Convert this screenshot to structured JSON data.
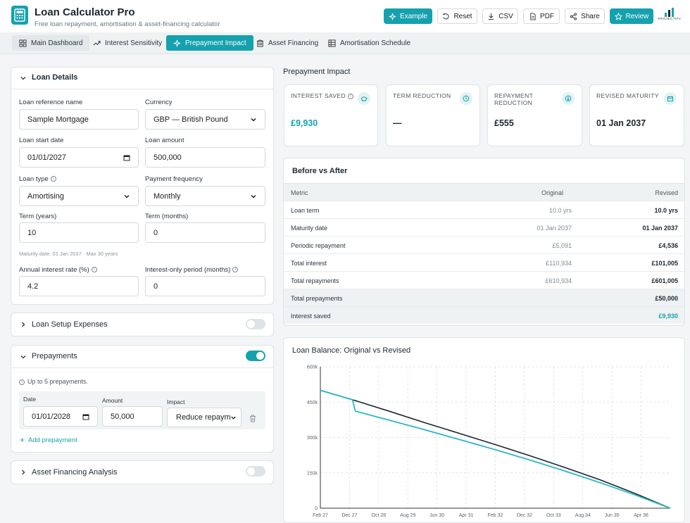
{
  "header": {
    "title": "Loan Calculator Pro",
    "subtitle": "Free loan repayment, amortisation & asset-financing calculator",
    "buttons": {
      "example": "Example",
      "reset": "Reset",
      "csv": "CSV",
      "pdf": "PDF",
      "share": "Share",
      "review": "Review"
    },
    "brand": "PROJECTIFY"
  },
  "tabs": [
    {
      "label": "Main Dashboard"
    },
    {
      "label": "Interest Sensitivity"
    },
    {
      "label": "Prepayment Impact"
    },
    {
      "label": "Asset Financing"
    },
    {
      "label": "Amortisation Schedule"
    }
  ],
  "loan_details": {
    "title": "Loan Details",
    "reference_label": "Loan reference name",
    "reference_value": "Sample Mortgage",
    "currency_label": "Currency",
    "currency_value": "GBP — British Pound",
    "start_label": "Loan start date",
    "start_value": "01/01/2027",
    "amount_label": "Loan amount",
    "amount_value": "500,000",
    "type_label": "Loan type",
    "type_value": "Amortising",
    "frequency_label": "Payment frequency",
    "frequency_value": "Monthly",
    "term_years_label": "Term (years)",
    "term_years_value": "10",
    "term_months_label": "Term (months)",
    "term_months_value": "0",
    "maturity_hint": "Maturity date: 01 Jan 2037 · Max 30 years",
    "rate_label": "Annual interest rate (%)",
    "rate_value": "4.2",
    "io_label": "Interest-only period (months)",
    "io_value": "0"
  },
  "setup_expenses": {
    "title": "Loan Setup Expenses",
    "enabled": false
  },
  "prepayments": {
    "title": "Prepayments",
    "enabled": true,
    "hint": "Up to 5 prepayments.",
    "date_label": "Date",
    "date_value": "01/01/2028",
    "amount_label": "Amount",
    "amount_value": "50,000",
    "impact_label": "Impact",
    "impact_value": "Reduce repayme",
    "add_label": "Add prepayment"
  },
  "asset_financing": {
    "title": "Asset Financing Analysis",
    "enabled": false
  },
  "prepayment_impact": {
    "heading": "Prepayment Impact",
    "stats": [
      {
        "label": "Interest saved",
        "value": "£9,930",
        "icon": "piggy-bank-icon",
        "accent": true
      },
      {
        "label": "Term reduction",
        "value": "—",
        "icon": "clock-icon",
        "accent": false
      },
      {
        "label": "Repayment reduction",
        "value": "£555",
        "icon": "arrow-down-circle-icon",
        "accent": false
      },
      {
        "label": "Revised maturity",
        "value": "01 Jan 2037",
        "icon": "calendar-icon",
        "accent": false
      }
    ]
  },
  "before_after": {
    "title": "Before vs After",
    "columns": [
      "Metric",
      "Original",
      "Revised"
    ],
    "rows": [
      [
        "Loan term",
        "10.0 yrs",
        "10.0 yrs"
      ],
      [
        "Maturity date",
        "01 Jan 2037",
        "01 Jan 2037"
      ],
      [
        "Periodic repayment",
        "£5,091",
        "£4,536"
      ],
      [
        "Total interest",
        "£110,934",
        "£101,005"
      ],
      [
        "Total repayments",
        "£610,934",
        "£601,005"
      ]
    ],
    "summary_rows": [
      [
        "Total prepayments",
        "£50,000"
      ],
      [
        "Interest saved",
        "£9,930"
      ]
    ]
  },
  "chart_data": {
    "type": "line",
    "title": "Loan Balance: Original vs Revised",
    "xlabel": "",
    "ylabel": "",
    "x_ticks": [
      "Feb 27",
      "Dec 27",
      "Oct 28",
      "Aug 29",
      "Jun 30",
      "Apr 31",
      "Feb 32",
      "Dec 32",
      "Oct 33",
      "Aug 34",
      "Jun 35",
      "Apr 36"
    ],
    "y_ticks": [
      "0",
      "150k",
      "300k",
      "450k",
      "600k"
    ],
    "ylim": [
      0,
      600000
    ],
    "x_range": [
      0,
      120
    ],
    "grid": true,
    "series": [
      {
        "color": "#1a2633",
        "points": [
          [
            0,
            500000
          ],
          [
            11,
            460000
          ],
          [
            24,
            410000
          ],
          [
            36,
            362000
          ],
          [
            48,
            316000
          ],
          [
            60,
            270000
          ],
          [
            72,
            222000
          ],
          [
            84,
            172000
          ],
          [
            96,
            120000
          ],
          [
            108,
            62000
          ],
          [
            120,
            0
          ]
        ]
      },
      {
        "color": "#2bb6c6",
        "points": [
          [
            0,
            500000
          ],
          [
            11,
            460000
          ],
          [
            12,
            412000
          ],
          [
            24,
            372000
          ],
          [
            36,
            332000
          ],
          [
            48,
            290000
          ],
          [
            60,
            248000
          ],
          [
            72,
            204000
          ],
          [
            84,
            157000
          ],
          [
            96,
            108000
          ],
          [
            108,
            56000
          ],
          [
            120,
            0
          ]
        ]
      }
    ]
  },
  "colors": {
    "accent": "#16a1ae",
    "dark_line": "#1a2633",
    "light_line": "#2bb6c6"
  }
}
